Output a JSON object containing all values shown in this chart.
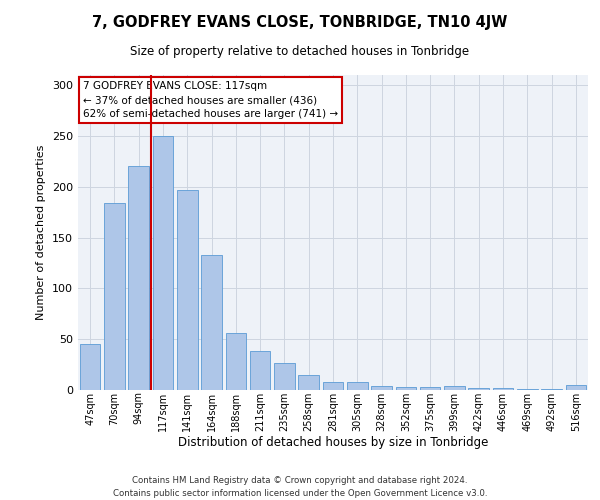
{
  "title": "7, GODFREY EVANS CLOSE, TONBRIDGE, TN10 4JW",
  "subtitle": "Size of property relative to detached houses in Tonbridge",
  "xlabel": "Distribution of detached houses by size in Tonbridge",
  "ylabel": "Number of detached properties",
  "categories": [
    "47sqm",
    "70sqm",
    "94sqm",
    "117sqm",
    "141sqm",
    "164sqm",
    "188sqm",
    "211sqm",
    "235sqm",
    "258sqm",
    "281sqm",
    "305sqm",
    "328sqm",
    "352sqm",
    "375sqm",
    "399sqm",
    "422sqm",
    "446sqm",
    "469sqm",
    "492sqm",
    "516sqm"
  ],
  "values": [
    45,
    184,
    220,
    250,
    197,
    133,
    56,
    38,
    27,
    15,
    8,
    8,
    4,
    3,
    3,
    4,
    2,
    2,
    1,
    1,
    5
  ],
  "bar_color": "#aec6e8",
  "bar_edge_color": "#5b9bd5",
  "red_line_x": 2.5,
  "annotation_text": "7 GODFREY EVANS CLOSE: 117sqm\n← 37% of detached houses are smaller (436)\n62% of semi-detached houses are larger (741) →",
  "annotation_box_color": "#ffffff",
  "annotation_box_edge_color": "#cc0000",
  "grid_color": "#cdd5e0",
  "background_color": "#eef2f8",
  "footer1": "Contains HM Land Registry data © Crown copyright and database right 2024.",
  "footer2": "Contains public sector information licensed under the Open Government Licence v3.0.",
  "ylim": [
    0,
    310
  ],
  "yticks": [
    0,
    50,
    100,
    150,
    200,
    250,
    300
  ]
}
